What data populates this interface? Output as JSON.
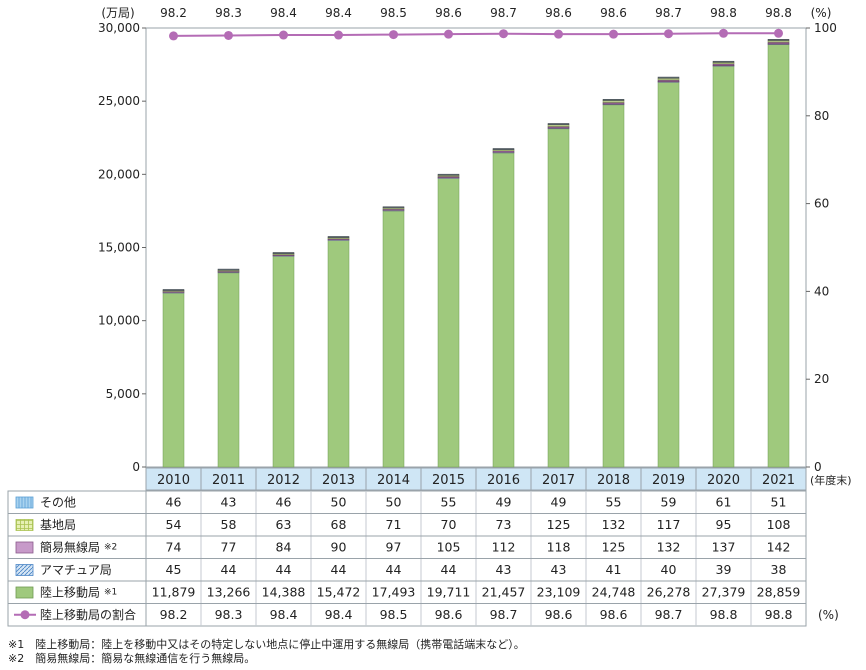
{
  "chart_data": {
    "type": "bar",
    "stacked": true,
    "units": {
      "left": "(万局)",
      "right": "(%)",
      "x": "(年度末)"
    },
    "categories": [
      "2010",
      "2011",
      "2012",
      "2013",
      "2014",
      "2015",
      "2016",
      "2017",
      "2018",
      "2019",
      "2020",
      "2021"
    ],
    "ylim": [
      0,
      30000
    ],
    "y_ticks": [
      "0",
      "5,000",
      "10,000",
      "15,000",
      "20,000",
      "25,000",
      "30,000"
    ],
    "y2lim": [
      0,
      100
    ],
    "y2_ticks": [
      "0",
      "20",
      "40",
      "60",
      "80",
      "100"
    ],
    "series": [
      {
        "name": "その他",
        "color": "#a9d3ef",
        "values": [
          46,
          43,
          46,
          50,
          50,
          55,
          49,
          49,
          55,
          59,
          61,
          51
        ],
        "labels": [
          "46",
          "43",
          "46",
          "50",
          "50",
          "55",
          "49",
          "49",
          "55",
          "59",
          "61",
          "51"
        ]
      },
      {
        "name": "基地局",
        "color": "#d8e89a",
        "values": [
          54,
          58,
          63,
          68,
          71,
          70,
          73,
          125,
          132,
          117,
          95,
          108
        ],
        "labels": [
          "54",
          "58",
          "63",
          "68",
          "71",
          "70",
          "73",
          "125",
          "132",
          "117",
          "95",
          "108"
        ]
      },
      {
        "name": "簡易無線局",
        "note": "※2",
        "color": "#c79ac9",
        "values": [
          74,
          77,
          84,
          90,
          97,
          105,
          112,
          118,
          125,
          132,
          137,
          142
        ],
        "labels": [
          "74",
          "77",
          "84",
          "90",
          "97",
          "105",
          "112",
          "118",
          "125",
          "132",
          "137",
          "142"
        ]
      },
      {
        "name": "アマチュア局",
        "color": "#9fc1e3",
        "values": [
          45,
          44,
          44,
          44,
          44,
          44,
          43,
          43,
          41,
          40,
          39,
          38
        ],
        "labels": [
          "45",
          "44",
          "44",
          "44",
          "44",
          "44",
          "43",
          "43",
          "41",
          "40",
          "39",
          "38"
        ]
      },
      {
        "name": "陸上移動局",
        "note": "※1",
        "color": "#9fc97d",
        "values": [
          11879,
          13266,
          14388,
          15472,
          17493,
          19711,
          21457,
          23109,
          24748,
          26278,
          27379,
          28859
        ],
        "labels": [
          "11,879",
          "13,266",
          "14,388",
          "15,472",
          "17,493",
          "19,711",
          "21,457",
          "23,109",
          "24,748",
          "26,278",
          "27,379",
          "28,859"
        ]
      }
    ],
    "line_series": {
      "name": "陸上移動局の割合",
      "color": "#b46cb5",
      "axis": "right",
      "values": [
        98.2,
        98.3,
        98.4,
        98.4,
        98.5,
        98.6,
        98.7,
        98.6,
        98.6,
        98.7,
        98.8,
        98.8
      ],
      "labels": [
        "98.2",
        "98.3",
        "98.4",
        "98.4",
        "98.5",
        "98.6",
        "98.7",
        "98.6",
        "98.6",
        "98.7",
        "98.8",
        "98.8"
      ],
      "unit": "(%)"
    }
  },
  "footnotes": [
    "※1　陸上移動局：陸上を移動中又はその特定しない地点に停止中運用する無線局（携帯電話端末など）。",
    "※2　簡易無線局：簡易な無線通信を行う無線局。"
  ]
}
